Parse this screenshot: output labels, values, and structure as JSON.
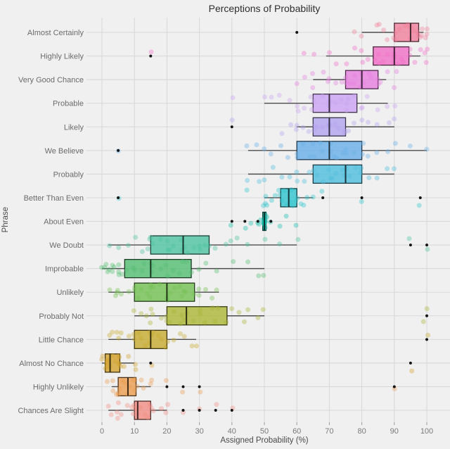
{
  "title": "Perceptions of Probability",
  "xlabel": "Assigned Probability (%)",
  "ylabel": "Phrase",
  "style": {
    "background": "#f0f0f0",
    "grid": "#d7d7d7",
    "whisker": "#4d4d4d",
    "outlier": "#141414",
    "title_color": "#2e2e2e",
    "axis_title_color": "#4a4a4a",
    "tick_label_color": "#7b7b7b",
    "category_label_color": "#6b6b6b"
  },
  "chart_data": {
    "type": "boxplot",
    "orientation": "horizontal",
    "grid": true,
    "legend": false,
    "xlim": [
      0,
      100
    ],
    "x_ticks": [
      0,
      10,
      20,
      30,
      40,
      50,
      60,
      70,
      80,
      90,
      100
    ],
    "rows": [
      {
        "label": "Almost Certainly",
        "color": "#F0809C",
        "whisker_low": 80,
        "q1": 90,
        "median": 95,
        "q3": 97.5,
        "whisker_high": 99,
        "outliers": [
          60
        ],
        "points": [
          78,
          80,
          85,
          85,
          87,
          88,
          90,
          90,
          90,
          92,
          93,
          94,
          95,
          95,
          95,
          96,
          97,
          97,
          98,
          98,
          99,
          100,
          100,
          100
        ]
      },
      {
        "label": "Highly Likely",
        "color": "#F16FC7",
        "whisker_low": 69,
        "q1": 83.5,
        "median": 90,
        "q3": 94.5,
        "whisker_high": 98,
        "outliers": [
          15
        ],
        "points": [
          15,
          62,
          65,
          70,
          72,
          75,
          78,
          80,
          80,
          82,
          84,
          85,
          85,
          87,
          88,
          90,
          90,
          90,
          91,
          92,
          93,
          95,
          95,
          96,
          98,
          99,
          100,
          100
        ]
      },
      {
        "label": "Very Good Chance",
        "color": "#E67EDF",
        "whisker_low": 65,
        "q1": 75,
        "median": 80,
        "q3": 85,
        "whisker_high": 87.5,
        "outliers": [],
        "points": [
          60,
          62,
          65,
          65,
          68,
          70,
          70,
          72,
          74,
          75,
          75,
          76,
          78,
          78,
          80,
          80,
          80,
          82,
          83,
          85,
          85,
          86,
          88,
          90,
          91
        ]
      },
      {
        "label": "Probable",
        "color": "#CBA2F2",
        "whisker_low": 50,
        "q1": 65,
        "median": 70,
        "q3": 78.5,
        "whisker_high": 88,
        "outliers": [],
        "points": [
          40,
          50,
          52,
          55,
          58,
          60,
          60,
          62,
          64,
          65,
          65,
          68,
          70,
          70,
          70,
          72,
          74,
          75,
          75,
          76,
          78,
          80,
          80,
          82,
          85,
          88,
          90
        ]
      },
      {
        "label": "Likely",
        "color": "#B2A3EF",
        "whisker_low": 60,
        "q1": 65,
        "median": 70,
        "q3": 75,
        "whisker_high": 90,
        "outliers": [
          40
        ],
        "points": [
          40,
          55,
          58,
          60,
          60,
          62,
          64,
          65,
          65,
          66,
          68,
          70,
          70,
          70,
          72,
          73,
          75,
          75,
          76,
          78,
          80,
          82,
          85,
          88,
          90
        ]
      },
      {
        "label": "We Believe",
        "color": "#68AFE8",
        "whisker_low": 45,
        "q1": 60,
        "median": 70,
        "q3": 80,
        "whisker_high": 100,
        "outliers": [
          5
        ],
        "points": [
          5,
          45,
          48,
          50,
          52,
          55,
          57,
          60,
          60,
          62,
          64,
          65,
          65,
          67,
          68,
          70,
          70,
          71,
          72,
          74,
          75,
          75,
          78,
          80,
          80,
          82,
          85,
          88,
          90,
          95,
          100
        ]
      },
      {
        "label": "Probably",
        "color": "#4FBEDD",
        "whisker_low": 45,
        "q1": 65,
        "median": 75,
        "q3": 80,
        "whisker_high": 90,
        "outliers": [],
        "points": [
          45,
          48,
          50,
          53,
          55,
          58,
          60,
          60,
          62,
          64,
          65,
          66,
          68,
          70,
          70,
          71,
          72,
          74,
          75,
          75,
          76,
          78,
          80,
          80,
          82,
          85,
          88,
          90
        ]
      },
      {
        "label": "Better Than Even",
        "color": "#30C4CE",
        "whisker_low": 50,
        "q1": 55,
        "median": 57.5,
        "q3": 60,
        "whisker_high": 65,
        "outliers": [
          5,
          68,
          80,
          98
        ],
        "points": [
          5,
          45,
          50,
          50,
          50,
          51,
          52,
          53,
          54,
          55,
          55,
          56,
          57,
          58,
          58,
          59,
          60,
          60,
          61,
          62,
          63,
          65,
          68,
          80,
          98
        ]
      },
      {
        "label": "About Even",
        "color": "#16BDAD",
        "whisker_low": 49.5,
        "q1": 49.5,
        "median": 50,
        "q3": 50.5,
        "whisker_high": 50.5,
        "outliers": [
          40,
          44,
          48,
          52
        ],
        "points": [
          40,
          44,
          46,
          48,
          48,
          49,
          50,
          50,
          50,
          50,
          50,
          50,
          50,
          50,
          50,
          50,
          50,
          51,
          52,
          55,
          57,
          60
        ]
      },
      {
        "label": "We Doubt",
        "color": "#4EC3A1",
        "whisker_low": 2,
        "q1": 15,
        "median": 25,
        "q3": 33,
        "whisker_high": 60,
        "outliers": [
          95,
          100
        ],
        "points": [
          2,
          5,
          8,
          10,
          12,
          14,
          15,
          15,
          16,
          18,
          20,
          20,
          21,
          22,
          24,
          25,
          25,
          26,
          28,
          30,
          30,
          32,
          33,
          35,
          38,
          40,
          42,
          45,
          50,
          55,
          60,
          95,
          100
        ]
      },
      {
        "label": "Improbable",
        "color": "#53BD72",
        "whisker_low": 0,
        "q1": 7,
        "median": 15,
        "q3": 27.5,
        "whisker_high": 50,
        "outliers": [],
        "points": [
          0,
          1,
          1,
          2,
          2,
          3,
          3,
          4,
          5,
          5,
          5,
          6,
          8,
          10,
          10,
          12,
          13,
          15,
          15,
          16,
          18,
          20,
          20,
          22,
          24,
          25,
          26,
          28,
          30,
          32,
          35,
          40,
          45,
          48,
          50
        ]
      },
      {
        "label": "Unlikely",
        "color": "#73C053",
        "whisker_low": 2,
        "q1": 10,
        "median": 20,
        "q3": 28.5,
        "whisker_high": 36,
        "outliers": [],
        "points": [
          2,
          4,
          5,
          5,
          6,
          8,
          10,
          10,
          11,
          12,
          14,
          15,
          15,
          15,
          16,
          18,
          20,
          20,
          21,
          22,
          24,
          25,
          25,
          26,
          28,
          30,
          30,
          32,
          34,
          35
        ]
      },
      {
        "label": "Probably Not",
        "color": "#ABB636",
        "whisker_low": 10,
        "q1": 20,
        "median": 26,
        "q3": 38.5,
        "whisker_high": 50,
        "outliers": [
          100
        ],
        "points": [
          10,
          12,
          14,
          15,
          15,
          16,
          18,
          20,
          20,
          21,
          22,
          24,
          25,
          25,
          26,
          28,
          30,
          30,
          32,
          34,
          35,
          36,
          38,
          40,
          42,
          44,
          45,
          48,
          50,
          99,
          100
        ]
      },
      {
        "label": "Little Chance",
        "color": "#C7AA30",
        "whisker_low": 2,
        "q1": 10,
        "median": 15,
        "q3": 20,
        "whisker_high": 29,
        "outliers": [
          100
        ],
        "points": [
          2,
          3,
          5,
          5,
          6,
          8,
          10,
          10,
          11,
          12,
          13,
          15,
          15,
          15,
          16,
          17,
          18,
          20,
          20,
          22,
          24,
          25,
          28,
          29,
          100
        ]
      },
      {
        "label": "Almost No Chance",
        "color": "#D2A32E",
        "whisker_low": 0,
        "q1": 1,
        "median": 2.5,
        "q3": 5.5,
        "whisker_high": 10,
        "outliers": [
          15,
          95
        ],
        "points": [
          0,
          0,
          1,
          1,
          1,
          2,
          2,
          2,
          3,
          3,
          4,
          5,
          5,
          5,
          5,
          6,
          7,
          8,
          10,
          10,
          15,
          95
        ]
      },
      {
        "label": "Highly Unlikely",
        "color": "#EB9D51",
        "whisker_low": 3,
        "q1": 5,
        "median": 8,
        "q3": 10.5,
        "whisker_high": 15,
        "outliers": [
          20,
          25,
          30,
          90
        ],
        "points": [
          2,
          3,
          3,
          4,
          5,
          5,
          5,
          6,
          7,
          8,
          8,
          9,
          10,
          10,
          10,
          11,
          12,
          13,
          15,
          15,
          20,
          25,
          30,
          90
        ]
      },
      {
        "label": "Chances Are Slight",
        "color": "#F18D84",
        "whisker_low": 2,
        "q1": 10,
        "median": 11,
        "q3": 15,
        "whisker_high": 20,
        "outliers": [
          25,
          30,
          35,
          40
        ],
        "points": [
          2,
          3,
          5,
          5,
          5,
          6,
          8,
          9,
          10,
          10,
          10,
          11,
          12,
          13,
          14,
          15,
          15,
          16,
          18,
          20,
          20,
          25,
          30,
          35,
          40
        ]
      }
    ]
  }
}
